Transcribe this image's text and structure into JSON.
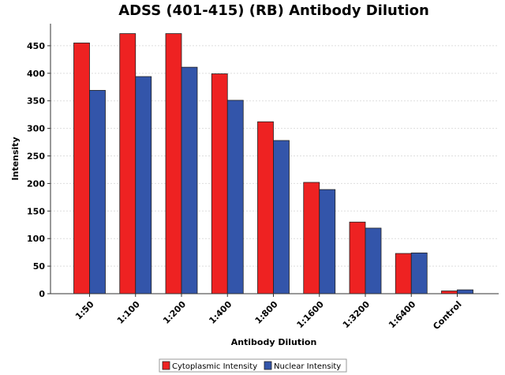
{
  "chart_data": {
    "type": "bar",
    "title": "ADSS (401-415) (RB) Antibody Dilution",
    "xlabel": "Antibody Dilution",
    "ylabel": "Intensity",
    "categories": [
      "1:50",
      "1:100",
      "1:200",
      "1:400",
      "1:800",
      "1:1600",
      "1:3200",
      "1:6400",
      "Control"
    ],
    "series": [
      {
        "name": "Cytoplasmic Intensity",
        "color": "#ee2222",
        "values": [
          455,
          472,
          472,
          399,
          312,
          202,
          130,
          73,
          5
        ]
      },
      {
        "name": "Nuclear Intensity",
        "color": "#3355aa",
        "values": [
          369,
          394,
          411,
          351,
          278,
          189,
          119,
          74,
          7
        ]
      }
    ],
    "ylim": [
      0,
      490
    ],
    "yticks": [
      0,
      50,
      100,
      150,
      200,
      250,
      300,
      350,
      400,
      450
    ],
    "grid": true,
    "legend_position": "bottom"
  }
}
